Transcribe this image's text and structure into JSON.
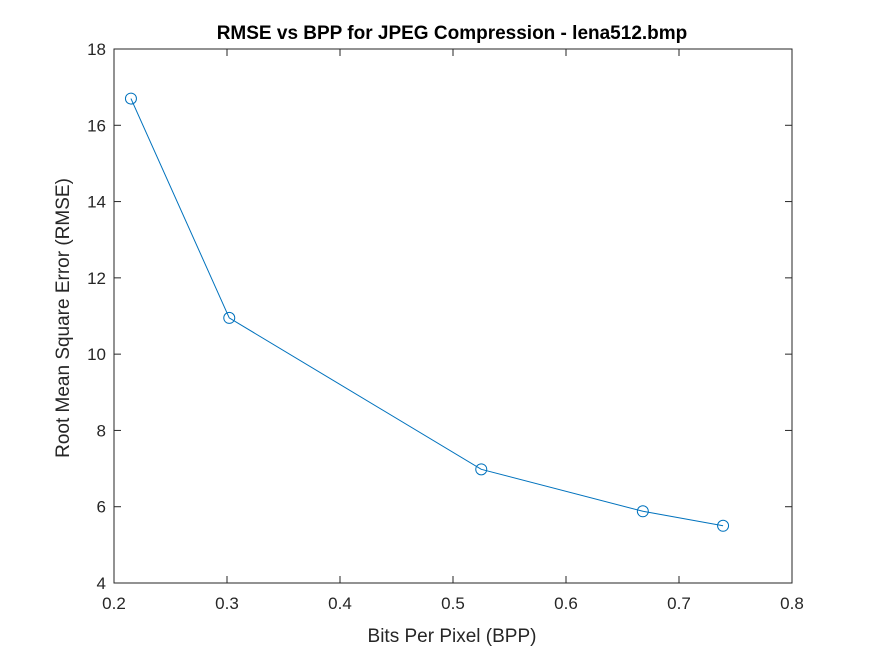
{
  "chart_data": {
    "type": "line",
    "title": "RMSE vs BPP for JPEG Compression - lena512.bmp",
    "xlabel": "Bits Per Pixel (BPP)",
    "ylabel": "Root Mean Square Error (RMSE)",
    "xlim": [
      0.2,
      0.8
    ],
    "ylim": [
      4,
      18
    ],
    "xticks": [
      0.2,
      0.3,
      0.4,
      0.5,
      0.6,
      0.7,
      0.8
    ],
    "xtick_labels": [
      "0.2",
      "0.3",
      "0.4",
      "0.5",
      "0.6",
      "0.7",
      "0.8"
    ],
    "yticks": [
      4,
      6,
      8,
      10,
      12,
      14,
      16,
      18
    ],
    "ytick_labels": [
      "4",
      "6",
      "8",
      "10",
      "12",
      "14",
      "16",
      "18"
    ],
    "grid": false,
    "legend": "none",
    "marker": "circle-open",
    "color": "#0072BD",
    "series": [
      {
        "x": [
          0.215,
          0.302,
          0.525,
          0.668,
          0.739
        ],
        "y": [
          16.7,
          10.95,
          6.98,
          5.88,
          5.5
        ]
      }
    ]
  }
}
